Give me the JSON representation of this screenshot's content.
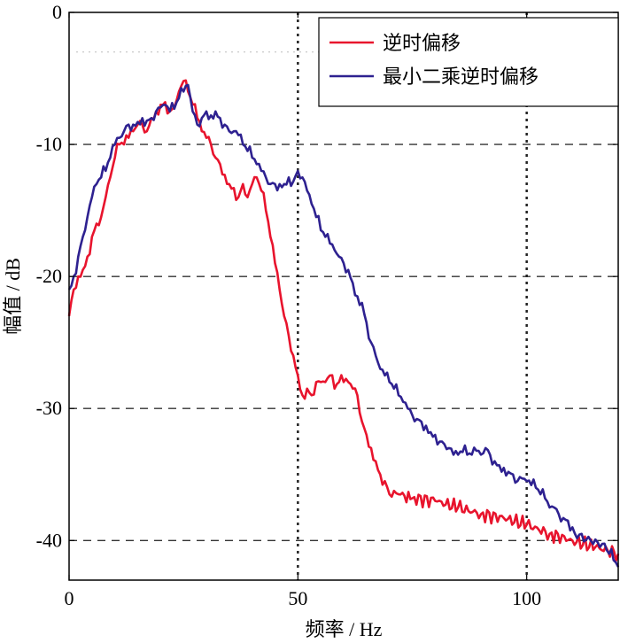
{
  "chart_data": {
    "type": "line",
    "title": "",
    "xlabel": "频率 / Hz",
    "ylabel": "幅值 / dB",
    "xlim": [
      0,
      120
    ],
    "ylim": [
      -43,
      0
    ],
    "x_ticks": [
      0,
      50,
      100
    ],
    "x_tick_labels": [
      "0",
      "50",
      "100"
    ],
    "y_ticks": [
      0,
      -10,
      -20,
      -30,
      -40
    ],
    "y_tick_labels": [
      "0",
      "-10",
      "-20",
      "-30",
      "-40"
    ],
    "grid": "dashed horizontal lines at -10, -20, -30, -40; dotted vertical lines at 50 and 100",
    "legend_position": "top-right",
    "series": [
      {
        "name": "逆时偏移",
        "color": "#e8142d",
        "points": [
          [
            0,
            -23
          ],
          [
            1,
            -21
          ],
          [
            2,
            -20
          ],
          [
            3,
            -19.5
          ],
          [
            4,
            -18.5
          ],
          [
            5,
            -17
          ],
          [
            6,
            -16
          ],
          [
            7,
            -15.5
          ],
          [
            8,
            -14
          ],
          [
            9,
            -12.5
          ],
          [
            10,
            -11
          ],
          [
            11,
            -10
          ],
          [
            12,
            -10
          ],
          [
            13,
            -9.5
          ],
          [
            14,
            -9
          ],
          [
            15,
            -8.5
          ],
          [
            16,
            -8.5
          ],
          [
            17,
            -9
          ],
          [
            18,
            -8
          ],
          [
            19,
            -7.5
          ],
          [
            20,
            -7
          ],
          [
            21,
            -6.8
          ],
          [
            22,
            -7.5
          ],
          [
            23,
            -7.2
          ],
          [
            24,
            -6
          ],
          [
            25,
            -5.2
          ],
          [
            26,
            -6
          ],
          [
            27,
            -7
          ],
          [
            28,
            -8
          ],
          [
            29,
            -9
          ],
          [
            30,
            -9.5
          ],
          [
            31,
            -10
          ],
          [
            32,
            -11
          ],
          [
            33,
            -11.5
          ],
          [
            34,
            -12.3
          ],
          [
            35,
            -13
          ],
          [
            36,
            -13.3
          ],
          [
            37,
            -14
          ],
          [
            38,
            -13
          ],
          [
            39,
            -14
          ],
          [
            40,
            -13
          ],
          [
            41,
            -12.5
          ],
          [
            42,
            -13.5
          ],
          [
            43,
            -15
          ],
          [
            44,
            -17
          ],
          [
            45,
            -19
          ],
          [
            46,
            -21
          ],
          [
            47,
            -23
          ],
          [
            48,
            -24.5
          ],
          [
            49,
            -26
          ],
          [
            50,
            -27.5
          ],
          [
            51,
            -29
          ],
          [
            52,
            -28.5
          ],
          [
            53,
            -29
          ],
          [
            54,
            -28
          ],
          [
            55,
            -28
          ],
          [
            56,
            -28
          ],
          [
            57,
            -27.5
          ],
          [
            58,
            -28.5
          ],
          [
            59,
            -28
          ],
          [
            60,
            -28
          ],
          [
            61,
            -28
          ],
          [
            62,
            -28.5
          ],
          [
            63,
            -29
          ],
          [
            64,
            -31
          ],
          [
            65,
            -32
          ],
          [
            66,
            -33
          ],
          [
            67,
            -34
          ],
          [
            68,
            -35
          ],
          [
            69,
            -35.5
          ],
          [
            70,
            -36.5
          ],
          [
            72,
            -36.5
          ],
          [
            75,
            -36.8
          ],
          [
            80,
            -37
          ],
          [
            85,
            -37.5
          ],
          [
            90,
            -38
          ],
          [
            95,
            -38.3
          ],
          [
            100,
            -38.8
          ],
          [
            105,
            -39.5
          ],
          [
            110,
            -40
          ],
          [
            115,
            -40.5
          ],
          [
            120,
            -41
          ]
        ]
      },
      {
        "name": "最小二乘逆时偏移",
        "color": "#2e2190",
        "points": [
          [
            0,
            -21
          ],
          [
            1,
            -20
          ],
          [
            2,
            -18.5
          ],
          [
            3,
            -17
          ],
          [
            4,
            -15.5
          ],
          [
            5,
            -14
          ],
          [
            6,
            -13
          ],
          [
            7,
            -12.5
          ],
          [
            8,
            -12
          ],
          [
            9,
            -11
          ],
          [
            10,
            -10
          ],
          [
            11,
            -9.5
          ],
          [
            12,
            -9
          ],
          [
            13,
            -8.5
          ],
          [
            14,
            -8.5
          ],
          [
            15,
            -8.3
          ],
          [
            16,
            -8
          ],
          [
            17,
            -8.2
          ],
          [
            18,
            -8
          ],
          [
            19,
            -7.5
          ],
          [
            20,
            -7.2
          ],
          [
            21,
            -7
          ],
          [
            22,
            -7.5
          ],
          [
            23,
            -7.3
          ],
          [
            24,
            -6.5
          ],
          [
            25,
            -6
          ],
          [
            26,
            -5.5
          ],
          [
            27,
            -7.5
          ],
          [
            28,
            -8.5
          ],
          [
            29,
            -8
          ],
          [
            30,
            -7.5
          ],
          [
            31,
            -7.8
          ],
          [
            32,
            -7.5
          ],
          [
            33,
            -8
          ],
          [
            34,
            -8.5
          ],
          [
            35,
            -9
          ],
          [
            36,
            -9
          ],
          [
            37,
            -9.3
          ],
          [
            38,
            -10
          ],
          [
            39,
            -10.5
          ],
          [
            40,
            -11
          ],
          [
            41,
            -11.5
          ],
          [
            42,
            -12
          ],
          [
            43,
            -12.5
          ],
          [
            44,
            -13
          ],
          [
            45,
            -13
          ],
          [
            46,
            -13
          ],
          [
            47,
            -13
          ],
          [
            48,
            -12.5
          ],
          [
            49,
            -12.8
          ],
          [
            50,
            -12
          ],
          [
            51,
            -12.5
          ],
          [
            52,
            -13.5
          ],
          [
            53,
            -14.5
          ],
          [
            54,
            -15.5
          ],
          [
            55,
            -16.5
          ],
          [
            56,
            -17
          ],
          [
            57,
            -17.5
          ],
          [
            58,
            -18
          ],
          [
            59,
            -18.5
          ],
          [
            60,
            -19
          ],
          [
            61,
            -19.5
          ],
          [
            62,
            -20.5
          ],
          [
            63,
            -21.5
          ],
          [
            64,
            -22
          ],
          [
            65,
            -23.5
          ],
          [
            66,
            -25
          ],
          [
            67,
            -26
          ],
          [
            68,
            -27
          ],
          [
            69,
            -27.5
          ],
          [
            70,
            -28
          ],
          [
            71,
            -28.5
          ],
          [
            72,
            -29
          ],
          [
            73,
            -29.5
          ],
          [
            74,
            -30
          ],
          [
            75,
            -30.5
          ],
          [
            76,
            -30.8
          ],
          [
            77,
            -31
          ],
          [
            78,
            -31.3
          ],
          [
            79,
            -31.8
          ],
          [
            80,
            -32
          ],
          [
            81,
            -32.5
          ],
          [
            82,
            -32.7
          ],
          [
            83,
            -33
          ],
          [
            84,
            -33.5
          ],
          [
            85,
            -33.5
          ],
          [
            86,
            -33.3
          ],
          [
            87,
            -33.5
          ],
          [
            88,
            -33.5
          ],
          [
            89,
            -33.2
          ],
          [
            90,
            -33.5
          ],
          [
            91,
            -33
          ],
          [
            92,
            -33.5
          ],
          [
            93,
            -34
          ],
          [
            94,
            -34.3
          ],
          [
            95,
            -34.5
          ],
          [
            96,
            -34.8
          ],
          [
            97,
            -35
          ],
          [
            98,
            -35.5
          ],
          [
            99,
            -35.3
          ],
          [
            100,
            -35.5
          ],
          [
            101,
            -35.8
          ],
          [
            102,
            -36
          ],
          [
            103,
            -36.5
          ],
          [
            104,
            -36.8
          ],
          [
            105,
            -37.5
          ],
          [
            106,
            -37.5
          ],
          [
            107,
            -38
          ],
          [
            108,
            -38.3
          ],
          [
            109,
            -38.5
          ],
          [
            110,
            -39
          ],
          [
            112,
            -39.5
          ],
          [
            114,
            -40
          ],
          [
            116,
            -40.5
          ],
          [
            118,
            -41
          ],
          [
            119,
            -41.5
          ],
          [
            120,
            -42
          ]
        ]
      }
    ]
  }
}
